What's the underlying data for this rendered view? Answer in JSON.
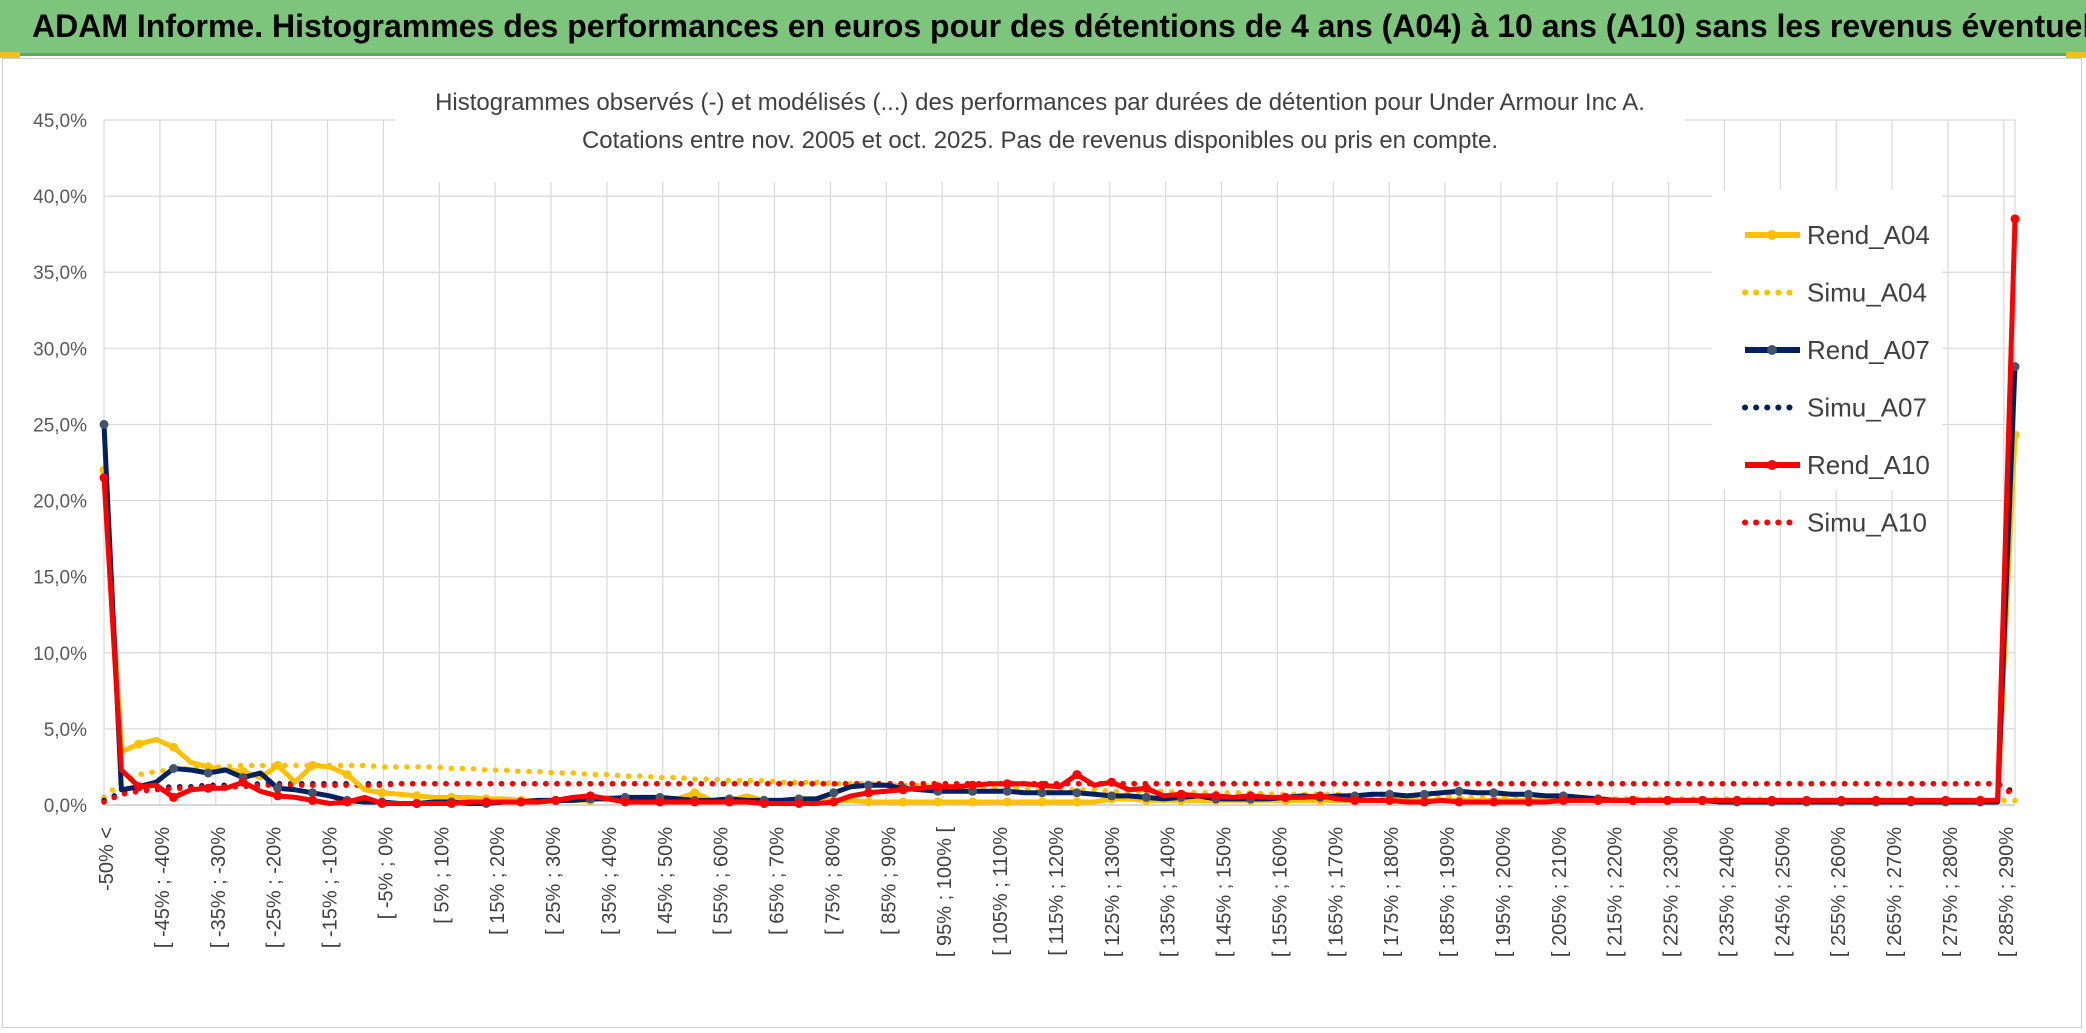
{
  "banner": {
    "title": "ADAM Informe. Histogrammes des performances en euros pour des détentions de 4 ans (A04) à 10 ans (A10) sans les revenus éventuels"
  },
  "colors": {
    "banner_bg": "#7dc57d",
    "a04": "#ffc000",
    "a07": "#002060",
    "a07_marker": "#44546a",
    "a10": "#ff0000"
  },
  "chart_data": {
    "type": "line",
    "title_line1": "Histogrammes observés (-) et modélisés (...) des performances par durées de détention pour Under Armour Inc A.",
    "title_line2": "Cotations entre nov. 2005 et oct. 2025. Pas de revenus disponibles ou pris en compte.",
    "y_ticks": [
      "0,0%",
      "5,0%",
      "10,0%",
      "15,0%",
      "20,0%",
      "25,0%",
      "30,0%",
      "35,0%",
      "40,0%",
      "45,0%"
    ],
    "ylim": [
      0,
      45
    ],
    "grid": true,
    "legend_position": "right",
    "x_tick_labels": [
      "-50% <",
      "[ -45% ; -40%",
      "[ -35% ; -30%",
      "[ -25% ; -20%",
      "[ -15% ; -10%",
      "[ -5% ; 0%",
      "[ 5% ; 10%",
      "[ 15% ; 20%",
      "[ 25% ; 30%",
      "[ 35% ; 40%",
      "[ 45% ; 50%",
      "[ 55% ; 60%",
      "[ 65% ; 70%",
      "[ 75% ; 80%",
      "[ 85% ; 90%",
      "[ 95% ; 100% [",
      "[ 105% ; 110%",
      "[ 115% ; 120%",
      "[ 125% ; 130%",
      "[ 135% ; 140%",
      "[ 145% ; 150%",
      "[ 155% ; 160%",
      "[ 165% ; 170%",
      "[ 175% ; 180%",
      "[ 185% ; 190%",
      "[ 195% ; 200%",
      "[ 205% ; 210%",
      "[ 215% ; 220%",
      "[ 225% ; 230%",
      "[ 235% ; 240%",
      "[ 245% ; 250%",
      "[ 255% ; 260%",
      "[ 265% ; 270%",
      "[ 275% ; 280%",
      "[ 285% ; 290%"
    ],
    "series": [
      {
        "name": "Rend_A04",
        "style": "solid",
        "color": "#ffc000",
        "values": [
          22.0,
          3.5,
          4.0,
          4.3,
          3.8,
          2.8,
          2.5,
          2.3,
          2.2,
          1.8,
          2.6,
          1.5,
          2.6,
          2.5,
          2.0,
          1.0,
          0.8,
          0.7,
          0.6,
          0.5,
          0.5,
          0.5,
          0.4,
          0.4,
          0.3,
          0.3,
          0.3,
          0.3,
          0.3,
          0.5,
          0.4,
          0.3,
          0.3,
          0.4,
          0.8,
          0.3,
          0.3,
          0.6,
          0.3,
          0.3,
          0.3,
          0.3,
          0.3,
          0.3,
          0.2,
          0.2,
          0.2,
          0.2,
          0.2,
          0.2,
          0.2,
          0.2,
          0.2,
          0.2,
          0.2,
          0.2,
          0.2,
          0.2,
          0.4,
          0.4,
          0.3,
          0.3,
          0.3,
          0.3,
          0.3,
          0.3,
          0.3,
          0.3,
          0.3,
          0.3,
          0.3,
          0.3,
          0.3,
          0.3,
          0.3,
          0.3,
          0.3,
          0.3,
          0.3,
          0.3,
          0.3,
          0.3,
          0.3,
          0.3,
          0.3,
          0.3,
          0.3,
          0.3,
          0.3,
          0.3,
          0.3,
          0.3,
          0.3,
          0.3,
          0.3,
          0.3,
          0.3,
          0.3,
          0.3,
          0.3,
          0.3,
          0.3,
          0.3,
          0.3,
          0.3,
          0.3,
          0.3,
          0.3,
          0.3,
          0.3,
          24.3
        ]
      },
      {
        "name": "Simu_A04",
        "style": "dotted",
        "color": "#ffc000",
        "values": [
          0.5,
          1.5,
          2.0,
          2.2,
          2.3,
          2.4,
          2.5,
          2.5,
          2.6,
          2.6,
          2.6,
          2.6,
          2.6,
          2.6,
          2.6,
          2.6,
          2.5,
          2.5,
          2.5,
          2.5,
          2.4,
          2.4,
          2.3,
          2.3,
          2.2,
          2.2,
          2.1,
          2.1,
          2.0,
          2.0,
          1.9,
          1.9,
          1.8,
          1.8,
          1.7,
          1.7,
          1.6,
          1.6,
          1.6,
          1.5,
          1.5,
          1.5,
          1.4,
          1.4,
          1.4,
          1.3,
          1.3,
          1.3,
          1.2,
          1.2,
          1.2,
          1.1,
          1.1,
          1.1,
          1.0,
          1.0,
          1.0,
          1.0,
          0.9,
          0.9,
          0.9,
          0.9,
          0.8,
          0.8,
          0.8,
          0.8,
          0.8,
          0.7,
          0.7,
          0.7,
          0.7,
          0.7,
          0.6,
          0.6,
          0.6,
          0.6,
          0.6,
          0.6,
          0.5,
          0.5,
          0.5,
          0.5,
          0.5,
          0.5,
          0.5,
          0.5,
          0.4,
          0.4,
          0.4,
          0.4,
          0.4,
          0.4,
          0.4,
          0.4,
          0.4,
          0.4,
          0.3,
          0.3,
          0.3,
          0.3,
          0.3,
          0.3,
          0.3,
          0.3,
          0.3,
          0.3,
          0.3,
          0.3,
          0.3,
          0.3,
          0.3
        ]
      },
      {
        "name": "Rend_A07",
        "style": "solid",
        "color": "#002060",
        "values": [
          25.0,
          1.0,
          1.2,
          1.5,
          2.4,
          2.3,
          2.1,
          2.3,
          1.8,
          2.1,
          1.1,
          1.0,
          0.8,
          0.6,
          0.3,
          0.2,
          0.2,
          0.1,
          0.1,
          0.2,
          0.2,
          0.1,
          0.1,
          0.2,
          0.2,
          0.3,
          0.3,
          0.3,
          0.4,
          0.4,
          0.5,
          0.5,
          0.5,
          0.4,
          0.3,
          0.3,
          0.4,
          0.3,
          0.3,
          0.3,
          0.4,
          0.4,
          0.8,
          1.2,
          1.3,
          1.3,
          1.1,
          1.0,
          0.9,
          0.9,
          0.9,
          0.9,
          0.9,
          0.8,
          0.8,
          0.8,
          0.8,
          0.7,
          0.6,
          0.6,
          0.5,
          0.4,
          0.5,
          0.6,
          0.4,
          0.4,
          0.4,
          0.4,
          0.5,
          0.6,
          0.5,
          0.6,
          0.6,
          0.7,
          0.7,
          0.6,
          0.7,
          0.8,
          0.9,
          0.8,
          0.8,
          0.7,
          0.7,
          0.6,
          0.6,
          0.5,
          0.4,
          0.3,
          0.3,
          0.3,
          0.3,
          0.3,
          0.3,
          0.2,
          0.2,
          0.2,
          0.2,
          0.2,
          0.2,
          0.2,
          0.2,
          0.2,
          0.2,
          0.2,
          0.2,
          0.2,
          0.2,
          0.2,
          0.2,
          0.2,
          28.8
        ]
      },
      {
        "name": "Simu_A07",
        "style": "dotted",
        "color": "#002060",
        "values": [
          0.3,
          0.8,
          1.0,
          1.1,
          1.2,
          1.2,
          1.3,
          1.3,
          1.3,
          1.4,
          1.4,
          1.4,
          1.4,
          1.4,
          1.4,
          1.4,
          1.4,
          1.4,
          1.4,
          1.4,
          1.4,
          1.4,
          1.4,
          1.4,
          1.4,
          1.4,
          1.4,
          1.4,
          1.4,
          1.4,
          1.4,
          1.4,
          1.4,
          1.4,
          1.4,
          1.4,
          1.4,
          1.4,
          1.4,
          1.4,
          1.4,
          1.4,
          1.4,
          1.4,
          1.4,
          1.4,
          1.4,
          1.4,
          1.4,
          1.4,
          1.4,
          1.4,
          1.4,
          1.4,
          1.4,
          1.4,
          1.4,
          1.4,
          1.4,
          1.4,
          1.4,
          1.4,
          1.4,
          1.4,
          1.4,
          1.4,
          1.4,
          1.4,
          1.4,
          1.4,
          1.4,
          1.4,
          1.4,
          1.4,
          1.4,
          1.4,
          1.4,
          1.4,
          1.4,
          1.4,
          1.4,
          1.4,
          1.4,
          1.4,
          1.4,
          1.4,
          1.4,
          1.4,
          1.4,
          1.4,
          1.4,
          1.4,
          1.4,
          1.4,
          1.4,
          1.4,
          1.4,
          1.4,
          1.4,
          1.4,
          1.4,
          1.4,
          1.4,
          1.4,
          1.4,
          1.4,
          1.4,
          1.4,
          1.4,
          1.4,
          0.8
        ]
      },
      {
        "name": "Rend_A10",
        "style": "solid",
        "color": "#ff0000",
        "values": [
          21.5,
          2.3,
          1.2,
          1.3,
          0.5,
          1.0,
          1.1,
          1.1,
          1.5,
          0.9,
          0.6,
          0.5,
          0.3,
          0.1,
          0.2,
          0.5,
          0.1,
          0.1,
          0.1,
          0.1,
          0.1,
          0.2,
          0.2,
          0.2,
          0.2,
          0.2,
          0.3,
          0.5,
          0.6,
          0.4,
          0.2,
          0.2,
          0.2,
          0.2,
          0.2,
          0.2,
          0.2,
          0.2,
          0.1,
          0.1,
          0.1,
          0.1,
          0.2,
          0.6,
          0.8,
          0.9,
          1.0,
          1.1,
          1.2,
          1.2,
          1.3,
          1.4,
          1.4,
          1.4,
          1.3,
          1.2,
          2.0,
          1.3,
          1.5,
          1.0,
          1.1,
          0.6,
          0.7,
          0.6,
          0.6,
          0.5,
          0.6,
          0.5,
          0.5,
          0.5,
          0.6,
          0.4,
          0.3,
          0.3,
          0.3,
          0.2,
          0.2,
          0.3,
          0.2,
          0.2,
          0.2,
          0.2,
          0.2,
          0.2,
          0.3,
          0.3,
          0.3,
          0.3,
          0.3,
          0.3,
          0.3,
          0.3,
          0.3,
          0.3,
          0.3,
          0.3,
          0.3,
          0.3,
          0.3,
          0.3,
          0.3,
          0.3,
          0.3,
          0.3,
          0.3,
          0.3,
          0.3,
          0.3,
          0.3,
          0.3,
          38.5
        ]
      },
      {
        "name": "Simu_A10",
        "style": "dotted",
        "color": "#ff0000",
        "values": [
          0.2,
          0.7,
          0.9,
          1.0,
          1.1,
          1.1,
          1.2,
          1.2,
          1.2,
          1.3,
          1.3,
          1.3,
          1.3,
          1.3,
          1.3,
          1.3,
          1.3,
          1.4,
          1.4,
          1.4,
          1.4,
          1.4,
          1.4,
          1.4,
          1.4,
          1.4,
          1.4,
          1.4,
          1.4,
          1.4,
          1.4,
          1.4,
          1.4,
          1.4,
          1.4,
          1.4,
          1.4,
          1.4,
          1.4,
          1.4,
          1.4,
          1.4,
          1.4,
          1.4,
          1.4,
          1.4,
          1.4,
          1.4,
          1.4,
          1.4,
          1.4,
          1.4,
          1.4,
          1.4,
          1.4,
          1.4,
          1.4,
          1.4,
          1.4,
          1.4,
          1.4,
          1.4,
          1.4,
          1.4,
          1.4,
          1.4,
          1.4,
          1.4,
          1.4,
          1.4,
          1.4,
          1.4,
          1.4,
          1.4,
          1.4,
          1.4,
          1.4,
          1.4,
          1.4,
          1.4,
          1.4,
          1.4,
          1.4,
          1.4,
          1.4,
          1.4,
          1.4,
          1.4,
          1.4,
          1.4,
          1.4,
          1.4,
          1.4,
          1.4,
          1.4,
          1.4,
          1.4,
          1.4,
          1.4,
          1.4,
          1.4,
          1.4,
          1.4,
          1.4,
          1.4,
          1.4,
          1.4,
          1.4,
          1.4,
          1.4,
          0.6
        ]
      }
    ]
  }
}
